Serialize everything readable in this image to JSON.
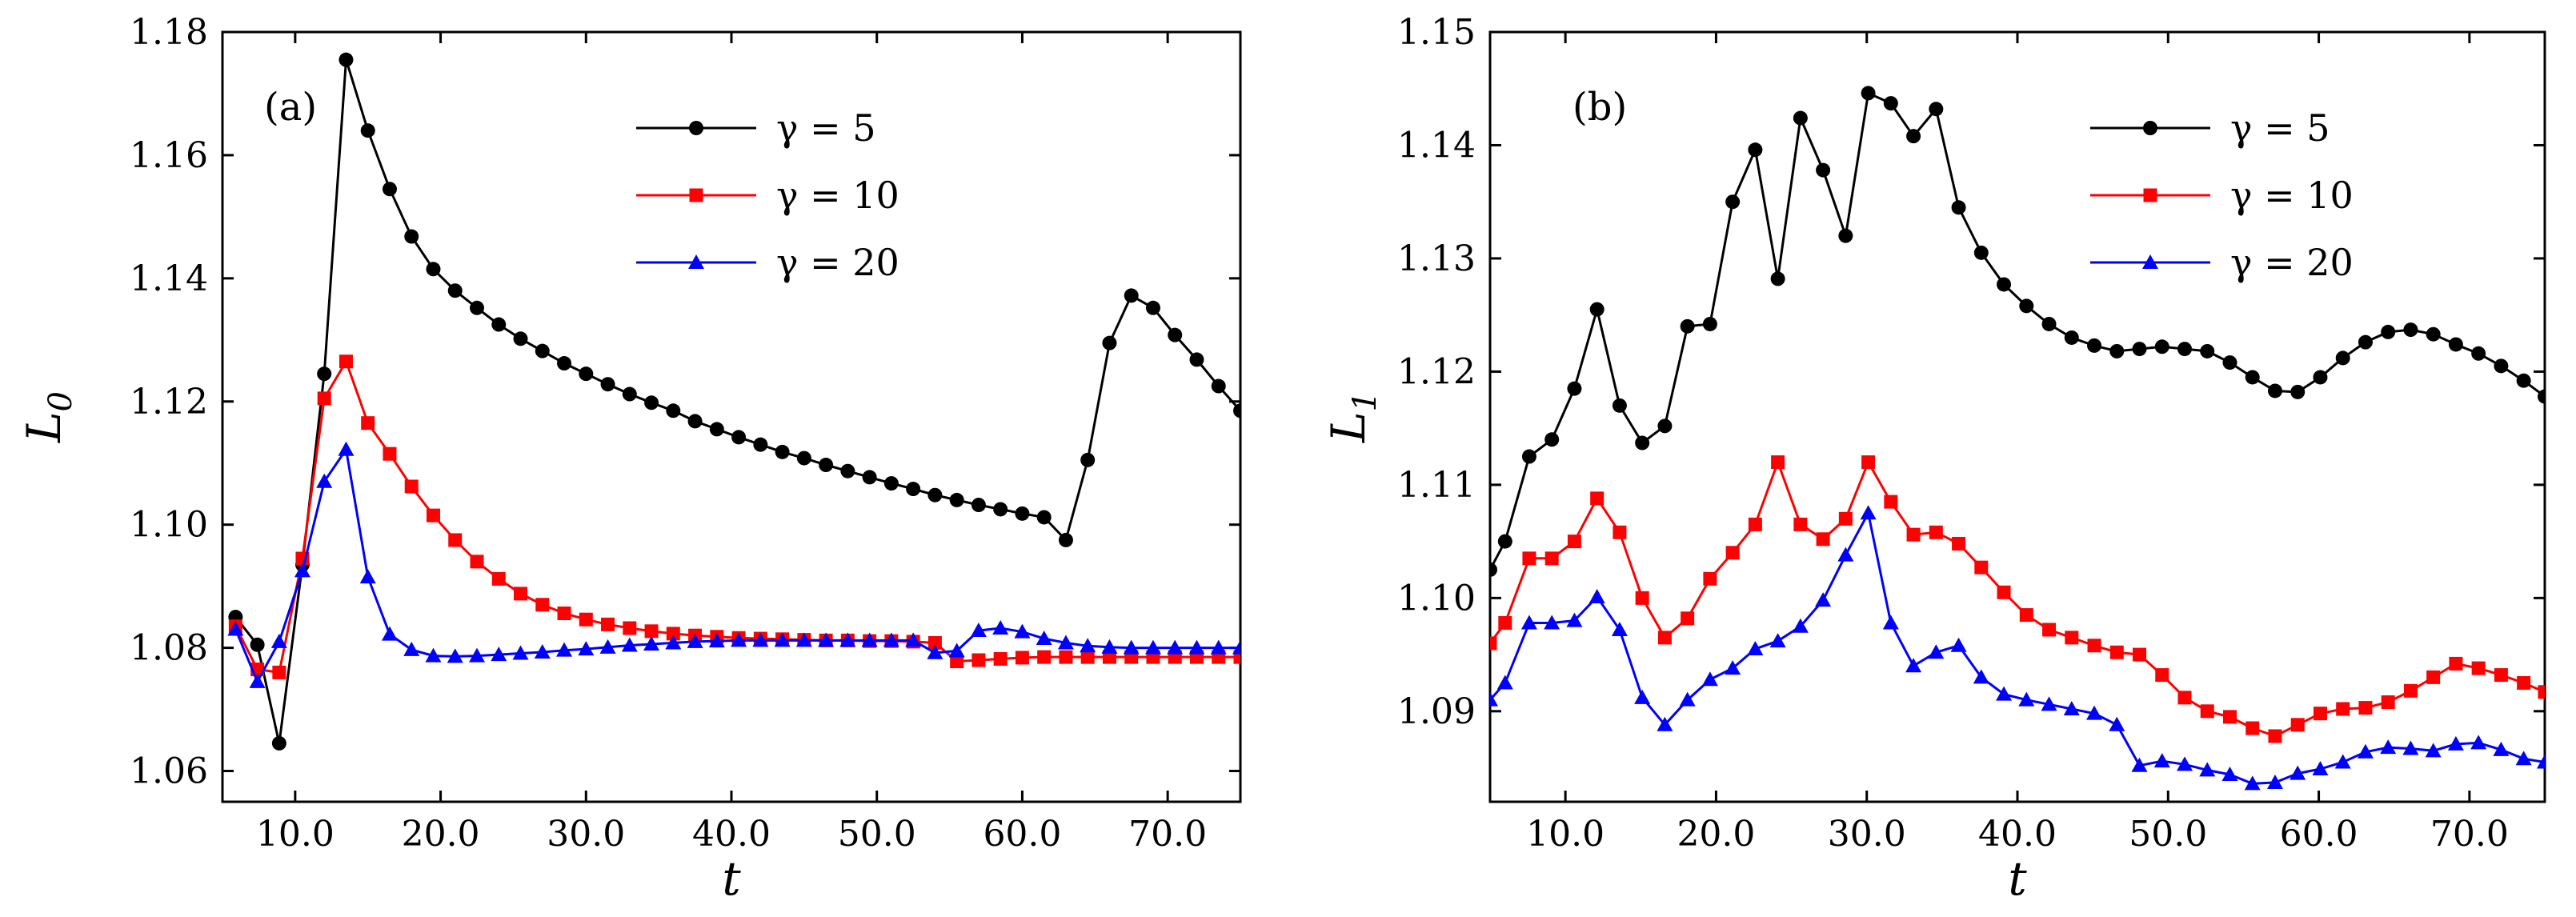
{
  "chart_data": [
    {
      "type": "line",
      "panel_label": "(a)",
      "xlabel": "t",
      "ylabel": "L",
      "ylabel_sub": "0",
      "xlim": [
        5.0,
        75.0
      ],
      "ylim": [
        1.055,
        1.18
      ],
      "xticks": [
        10,
        20,
        30,
        40,
        50,
        60,
        70
      ],
      "xtick_labels": [
        "10.0",
        "20.0",
        "30.0",
        "40.0",
        "50.0",
        "60.0",
        "70.0"
      ],
      "yticks": [
        1.06,
        1.08,
        1.1,
        1.12,
        1.14,
        1.16,
        1.18
      ],
      "ytick_labels": [
        "1.06",
        "1.08",
        "1.10",
        "1.12",
        "1.14",
        "1.16",
        "1.18"
      ],
      "legend_position": "top-right",
      "series": [
        {
          "name": "γ = 5",
          "color": "#000000",
          "marker": "circle",
          "x": [
            5.9,
            7.4,
            8.9,
            10.5,
            12.0,
            13.5,
            15.0,
            16.5,
            18.0,
            19.5,
            21.0,
            22.5,
            24.0,
            25.5,
            27.0,
            28.5,
            30.0,
            31.5,
            33.0,
            34.5,
            36.0,
            37.5,
            39.0,
            40.5,
            42.0,
            43.5,
            45.0,
            46.5,
            48.0,
            49.5,
            51.0,
            52.5,
            54.0,
            55.5,
            57.0,
            58.5,
            60.0,
            61.5,
            63.0,
            64.5,
            66.0,
            67.5,
            69.0,
            70.5,
            72.0,
            73.5,
            75.0
          ],
          "y": [
            1.085,
            1.0805,
            1.0645,
            1.0935,
            1.1245,
            1.1755,
            1.164,
            1.1545,
            1.1468,
            1.1415,
            1.138,
            1.1352,
            1.1325,
            1.1302,
            1.1282,
            1.1262,
            1.1245,
            1.1228,
            1.1212,
            1.1198,
            1.1185,
            1.1168,
            1.1155,
            1.1142,
            1.113,
            1.1118,
            1.1108,
            1.1097,
            1.1087,
            1.1077,
            1.1067,
            1.1058,
            1.1048,
            1.104,
            1.1032,
            1.1025,
            1.1018,
            1.1012,
            1.0975,
            1.1105,
            1.1295,
            1.1372,
            1.1352,
            1.1308,
            1.1268,
            1.1225,
            1.1185
          ]
        },
        {
          "name": "γ = 10",
          "color": "#ff0000",
          "marker": "square",
          "x": [
            5.9,
            7.4,
            8.9,
            10.5,
            12.0,
            13.5,
            15.0,
            16.5,
            18.0,
            19.5,
            21.0,
            22.5,
            24.0,
            25.5,
            27.0,
            28.5,
            30.0,
            31.5,
            33.0,
            34.5,
            36.0,
            37.5,
            39.0,
            40.5,
            42.0,
            43.5,
            45.0,
            46.5,
            48.0,
            49.5,
            51.0,
            52.5,
            54.0,
            55.5,
            57.0,
            58.5,
            60.0,
            61.5,
            63.0,
            64.5,
            66.0,
            67.5,
            69.0,
            70.5,
            72.0,
            73.5,
            75.0
          ],
          "y": [
            1.0835,
            1.0765,
            1.076,
            1.0945,
            1.1205,
            1.1265,
            1.1165,
            1.1115,
            1.1062,
            1.1015,
            1.0975,
            1.094,
            1.0912,
            1.0888,
            1.087,
            1.0856,
            1.0846,
            1.0838,
            1.0832,
            1.0827,
            1.0823,
            1.082,
            1.0818,
            1.0816,
            1.0815,
            1.0814,
            1.0813,
            1.0812,
            1.0812,
            1.0811,
            1.0811,
            1.081,
            1.0808,
            1.0778,
            1.078,
            1.0782,
            1.0784,
            1.0785,
            1.0785,
            1.0785,
            1.0785,
            1.0785,
            1.0785,
            1.0785,
            1.0785,
            1.0785,
            1.0785
          ]
        },
        {
          "name": "γ = 20",
          "color": "#0000ff",
          "marker": "triangle",
          "x": [
            5.9,
            7.4,
            8.9,
            10.5,
            12.0,
            13.5,
            15.0,
            16.5,
            18.0,
            19.5,
            21.0,
            22.5,
            24.0,
            25.5,
            27.0,
            28.5,
            30.0,
            31.5,
            33.0,
            34.5,
            36.0,
            37.5,
            39.0,
            40.5,
            42.0,
            43.5,
            45.0,
            46.5,
            48.0,
            49.5,
            51.0,
            52.5,
            54.0,
            55.5,
            57.0,
            58.5,
            60.0,
            61.5,
            63.0,
            64.5,
            66.0,
            67.5,
            69.0,
            70.5,
            72.0,
            73.5,
            75.0
          ],
          "y": [
            1.083,
            1.0745,
            1.081,
            1.0925,
            1.107,
            1.1122,
            1.0915,
            1.0822,
            1.0797,
            1.0787,
            1.0786,
            1.0787,
            1.0789,
            1.0791,
            1.0793,
            1.0796,
            1.0798,
            1.0801,
            1.0804,
            1.0806,
            1.0808,
            1.081,
            1.0811,
            1.0812,
            1.0812,
            1.0812,
            1.0812,
            1.0812,
            1.0812,
            1.0812,
            1.0812,
            1.0812,
            1.0792,
            1.0795,
            1.0828,
            1.0832,
            1.0826,
            1.0815,
            1.0808,
            1.0803,
            1.0801,
            1.08,
            1.08,
            1.08,
            1.08,
            1.08,
            1.08
          ]
        }
      ]
    },
    {
      "type": "line",
      "panel_label": "(b)",
      "xlabel": "t",
      "ylabel": "L",
      "ylabel_sub": "1",
      "xlim": [
        5.0,
        75.0
      ],
      "ylim": [
        1.082,
        1.15
      ],
      "xticks": [
        10,
        20,
        30,
        40,
        50,
        60,
        70
      ],
      "xtick_labels": [
        "10.0",
        "20.0",
        "30.0",
        "40.0",
        "50.0",
        "60.0",
        "70.0"
      ],
      "yticks": [
        1.09,
        1.1,
        1.11,
        1.12,
        1.13,
        1.14,
        1.15
      ],
      "ytick_labels": [
        "1.09",
        "1.10",
        "1.11",
        "1.12",
        "1.13",
        "1.14",
        "1.15"
      ],
      "legend_position": "top-right",
      "series": [
        {
          "name": "γ = 5",
          "color": "#000000",
          "marker": "circle",
          "x": [
            5.0,
            6.0,
            7.6,
            9.1,
            10.6,
            12.1,
            13.6,
            15.1,
            16.6,
            18.1,
            19.6,
            21.1,
            22.6,
            24.1,
            25.6,
            27.1,
            28.6,
            30.1,
            31.6,
            33.1,
            34.6,
            36.1,
            37.6,
            39.1,
            40.6,
            42.1,
            43.6,
            45.1,
            46.6,
            48.1,
            49.6,
            51.1,
            52.6,
            54.1,
            55.6,
            57.1,
            58.6,
            60.1,
            61.6,
            63.1,
            64.6,
            66.1,
            67.6,
            69.1,
            70.6,
            72.1,
            73.6,
            75.0
          ],
          "y": [
            1.1025,
            1.105,
            1.1125,
            1.114,
            1.1185,
            1.1255,
            1.117,
            1.1137,
            1.1152,
            1.124,
            1.1242,
            1.135,
            1.1396,
            1.1282,
            1.1424,
            1.1378,
            1.132,
            1.1446,
            1.1437,
            1.1408,
            1.1432,
            1.1345,
            1.1305,
            1.1277,
            1.1258,
            1.1242,
            1.123,
            1.1223,
            1.1218,
            1.122,
            1.1222,
            1.122,
            1.1218,
            1.1208,
            1.1195,
            1.1183,
            1.1182,
            1.1195,
            1.1212,
            1.1226,
            1.1235,
            1.1237,
            1.1233,
            1.1224,
            1.1216,
            1.1205,
            1.1192,
            1.1178
          ]
        },
        {
          "name": "γ = 10",
          "color": "#ff0000",
          "marker": "square",
          "x": [
            5.0,
            6.0,
            7.6,
            9.1,
            10.6,
            12.1,
            13.6,
            15.1,
            16.6,
            18.1,
            19.6,
            21.1,
            22.6,
            24.1,
            25.6,
            27.1,
            28.6,
            30.1,
            31.6,
            33.1,
            34.6,
            36.1,
            37.6,
            39.1,
            40.6,
            42.1,
            43.6,
            45.1,
            46.6,
            48.1,
            49.6,
            51.1,
            52.6,
            54.1,
            55.6,
            57.1,
            58.6,
            60.1,
            61.6,
            63.1,
            64.6,
            66.1,
            67.6,
            69.1,
            70.6,
            72.1,
            73.6,
            75.0
          ],
          "y": [
            1.096,
            1.0978,
            1.1035,
            1.1035,
            1.105,
            1.1088,
            1.1058,
            1.1,
            1.0965,
            1.0982,
            1.1017,
            1.104,
            1.1065,
            1.112,
            1.1065,
            1.1052,
            1.107,
            1.112,
            1.1085,
            1.1056,
            1.1058,
            1.1048,
            1.1027,
            1.1005,
            1.0985,
            1.0972,
            1.0965,
            1.0958,
            1.0952,
            1.095,
            1.0932,
            1.0912,
            1.09,
            1.0895,
            1.0885,
            1.0878,
            1.0888,
            1.0898,
            1.0902,
            1.0903,
            1.0908,
            1.0918,
            1.093,
            1.0942,
            1.0938,
            1.0932,
            1.0925,
            1.0917
          ]
        },
        {
          "name": "γ = 20",
          "color": "#0000ff",
          "marker": "triangle",
          "x": [
            5.0,
            6.0,
            7.6,
            9.1,
            10.6,
            12.1,
            13.6,
            15.1,
            16.6,
            18.1,
            19.6,
            21.1,
            22.6,
            24.1,
            25.6,
            27.1,
            28.6,
            30.1,
            31.6,
            33.1,
            34.6,
            36.1,
            37.6,
            39.1,
            40.6,
            42.1,
            43.6,
            45.1,
            46.6,
            48.1,
            49.6,
            51.1,
            52.6,
            54.1,
            55.6,
            57.1,
            58.6,
            60.1,
            61.6,
            63.1,
            64.6,
            66.1,
            67.6,
            69.1,
            70.6,
            72.1,
            73.6,
            75.0
          ],
          "y": [
            1.091,
            1.0925,
            1.0978,
            1.0978,
            1.098,
            1.1001,
            1.0972,
            1.0912,
            1.0888,
            1.091,
            1.0928,
            1.0938,
            1.0955,
            1.0962,
            1.0975,
            1.0998,
            1.1038,
            1.1075,
            1.0978,
            1.094,
            1.0952,
            1.0958,
            1.093,
            1.0915,
            1.091,
            1.0906,
            1.0902,
            1.0898,
            1.0888,
            1.0852,
            1.0856,
            1.0853,
            1.0848,
            1.0844,
            1.0836,
            1.0837,
            1.0845,
            1.0849,
            1.0855,
            1.0864,
            1.0868,
            1.0867,
            1.0865,
            1.0871,
            1.0872,
            1.0866,
            1.0858,
            1.0855
          ]
        }
      ]
    }
  ]
}
